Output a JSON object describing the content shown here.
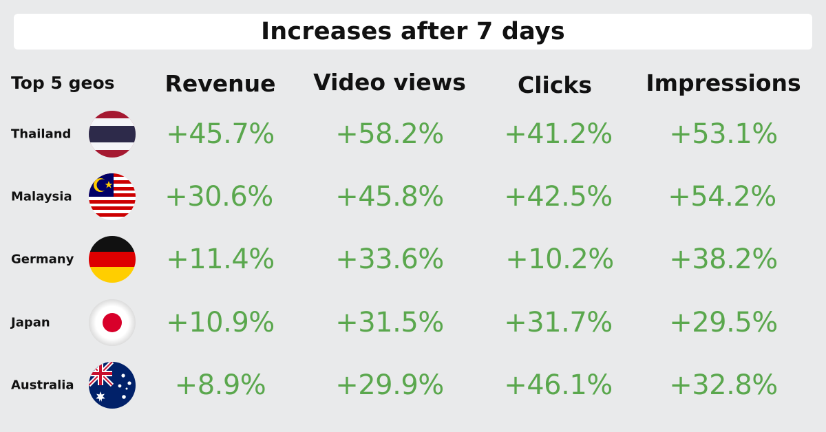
{
  "title": "Increases after 7 days",
  "headers": {
    "geos": "Top 5 geos",
    "revenue": "Revenue",
    "video_views": "Video views",
    "clicks": "Clicks",
    "impressions": "Impressions"
  },
  "rows": [
    {
      "country": "Thailand",
      "flag_icon": "thailand-flag-icon",
      "revenue": "+45.7%",
      "video_views": "+58.2%",
      "clicks": "+41.2%",
      "impressions": "+53.1%"
    },
    {
      "country": "Malaysia",
      "flag_icon": "malaysia-flag-icon",
      "revenue": "+30.6%",
      "video_views": "+45.8%",
      "clicks": "+42.5%",
      "impressions": "+54.2%"
    },
    {
      "country": "Germany",
      "flag_icon": "germany-flag-icon",
      "revenue": "+11.4%",
      "video_views": "+33.6%",
      "clicks": "+10.2%",
      "impressions": "+38.2%"
    },
    {
      "country": "Japan",
      "flag_icon": "japan-flag-icon",
      "revenue": "+10.9%",
      "video_views": "+31.5%",
      "clicks": "+31.7%",
      "impressions": "+29.5%"
    },
    {
      "country": "Australia",
      "flag_icon": "australia-flag-icon",
      "revenue": "+8.9%",
      "video_views": "+29.9%",
      "clicks": "+46.1%",
      "impressions": "+32.8%"
    }
  ],
  "colors": {
    "background": "#e9eaeb",
    "title_background": "#ffffff",
    "value_green": "#5aa74d",
    "text_dark": "#111111"
  }
}
